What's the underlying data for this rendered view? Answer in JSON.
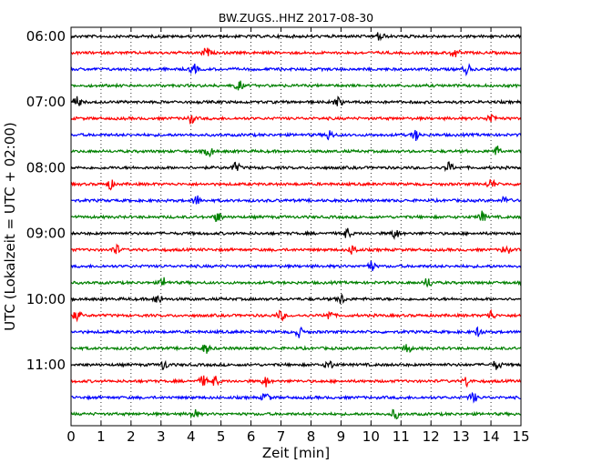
{
  "chart_data": {
    "type": "line",
    "title": "BW.ZUGS..HHZ 2017-08-30",
    "xlabel": "Zeit  [min]",
    "ylabel": "UTC (Lokalzeit = UTC + 02:00)",
    "xlim": [
      0,
      15
    ],
    "x_ticks": [
      "0",
      "1",
      "2",
      "3",
      "4",
      "5",
      "6",
      "7",
      "8",
      "9",
      "10",
      "11",
      "12",
      "13",
      "14",
      "15"
    ],
    "y_ticks": [
      "06:00",
      "07:00",
      "08:00",
      "09:00",
      "10:00",
      "11:00"
    ],
    "grid": "vertical-dotted",
    "interval_minutes": 15,
    "trace_colors": [
      "#000000",
      "#ff0000",
      "#0000ff",
      "#008000"
    ],
    "traces": [
      {
        "start": "06:00",
        "events": [
          10.3
        ]
      },
      {
        "start": "06:15",
        "events": [
          4.5,
          12.8
        ]
      },
      {
        "start": "06:30",
        "events": [
          4.1,
          13.2
        ]
      },
      {
        "start": "06:45",
        "events": [
          5.6
        ]
      },
      {
        "start": "07:00",
        "events": [
          0.2,
          8.9
        ]
      },
      {
        "start": "07:15",
        "events": [
          4.0,
          14.0
        ]
      },
      {
        "start": "07:30",
        "events": [
          8.6,
          11.5
        ]
      },
      {
        "start": "07:45",
        "events": [
          4.6,
          14.2
        ]
      },
      {
        "start": "08:00",
        "events": [
          5.5,
          12.6
        ]
      },
      {
        "start": "08:15",
        "events": [
          1.3,
          14.0
        ]
      },
      {
        "start": "08:30",
        "events": [
          4.2,
          14.5
        ]
      },
      {
        "start": "08:45",
        "events": [
          4.9,
          13.7
        ]
      },
      {
        "start": "09:00",
        "events": [
          9.2,
          10.8
        ]
      },
      {
        "start": "09:15",
        "events": [
          1.5,
          9.4,
          14.5
        ]
      },
      {
        "start": "09:30",
        "events": [
          10.0
        ]
      },
      {
        "start": "09:45",
        "events": [
          3.1,
          11.9
        ]
      },
      {
        "start": "10:00",
        "events": [
          2.9,
          9.0
        ]
      },
      {
        "start": "10:15",
        "events": [
          0.2,
          7.0,
          8.6,
          14.0
        ]
      },
      {
        "start": "10:30",
        "events": [
          7.6,
          13.6
        ]
      },
      {
        "start": "10:45",
        "events": [
          4.5,
          11.2
        ]
      },
      {
        "start": "11:00",
        "events": [
          3.1,
          8.6,
          14.2
        ]
      },
      {
        "start": "11:15",
        "events": [
          4.4,
          4.8,
          6.5,
          13.2
        ]
      },
      {
        "start": "11:30",
        "events": [
          6.5,
          13.4
        ]
      },
      {
        "start": "11:45",
        "events": [
          4.1,
          10.8
        ]
      }
    ]
  }
}
